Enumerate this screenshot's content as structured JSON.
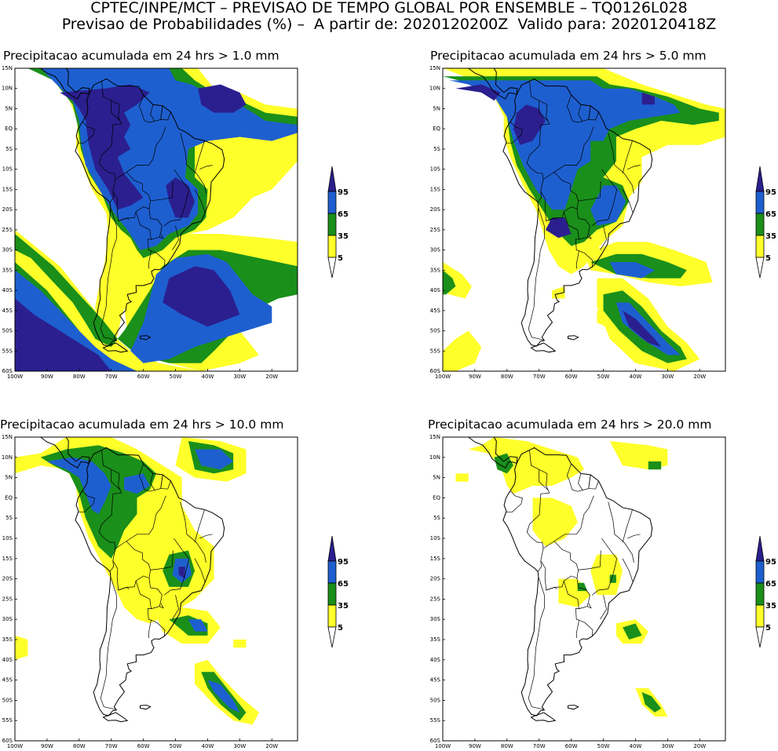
{
  "header": {
    "line1": "CPTEC/INPE/MCT – PREVISAO DE TEMPO GLOBAL POR ENSEMBLE – TQ0126L028",
    "line2": "Previsao de Probabilidades (%) –  A partir de: 2020120200Z  Valido para: 2020120418Z"
  },
  "panels": [
    {
      "title": "Precipitacao acumulada em 24 hrs > 1.0 mm"
    },
    {
      "title": "Precipitacao acumulada em 24 hrs > 5.0 mm"
    },
    {
      "title": "Precipitacao acumulada em 24 hrs > 10.0 mm"
    },
    {
      "title": "Precipitacao acumulada em 24 hrs > 20.0 mm"
    }
  ],
  "lat_labels": [
    "15N",
    "10N",
    "5N",
    "EQ",
    "5S",
    "10S",
    "15S",
    "20S",
    "25S",
    "30S",
    "35S",
    "40S",
    "45S",
    "50S",
    "55S",
    "60S"
  ],
  "lon_labels": [
    "100W",
    "90W",
    "80W",
    "70W",
    "60W",
    "50W",
    "40W",
    "30W",
    "20W"
  ],
  "legend": {
    "labels": [
      "95",
      "65",
      "35",
      "5"
    ],
    "colors": {
      "c95": "#2b1f8f",
      "c65": "#1e5fd0",
      "c35": "#1a8f1a",
      "c5": "#ffff2a",
      "land": "#ffffff",
      "lines": "#000000"
    }
  }
}
